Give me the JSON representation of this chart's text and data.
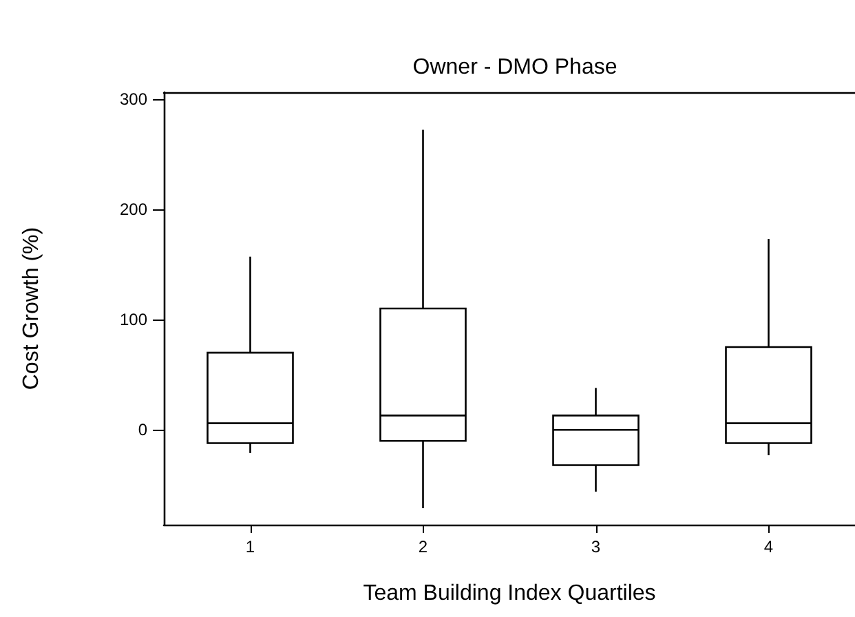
{
  "chart_data": {
    "type": "box",
    "title": "Owner - DMO Phase",
    "xlabel": "Team Building Index Quartiles",
    "ylabel": "Cost Growth (%)",
    "categories": [
      "1",
      "2",
      "3",
      "4"
    ],
    "boxes": [
      {
        "low": -21,
        "q1": -12,
        "median": 6,
        "q3": 70,
        "high": 157
      },
      {
        "low": -71,
        "q1": -10,
        "median": 13,
        "q3": 110,
        "high": 272
      },
      {
        "low": -56,
        "q1": -32,
        "median": 0,
        "q3": 13,
        "high": 38
      },
      {
        "low": -23,
        "q1": -12,
        "median": 6,
        "q3": 75,
        "high": 173
      }
    ],
    "color": "#000000",
    "ylim": [
      -86,
      306
    ],
    "yticks": [
      0,
      100,
      200,
      300
    ],
    "grid": false
  }
}
